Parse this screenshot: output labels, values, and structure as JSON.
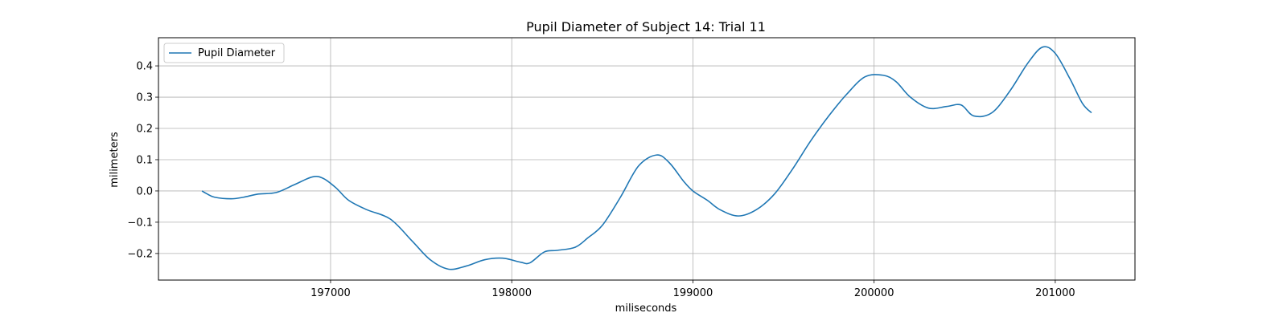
{
  "chart_data": {
    "type": "line",
    "title": "Pupil Diameter of Subject 14: Trial 11",
    "xlabel": "miliseconds",
    "ylabel": "milimeters",
    "xlim": [
      196050,
      201440
    ],
    "ylim": [
      -0.285,
      0.49
    ],
    "x_ticks": [
      197000,
      198000,
      199000,
      200000,
      201000
    ],
    "y_ticks": [
      -0.2,
      -0.1,
      0.0,
      0.1,
      0.2,
      0.3,
      0.4
    ],
    "x_tick_labels": [
      "197000",
      "198000",
      "199000",
      "200000",
      "201000"
    ],
    "y_tick_labels": [
      "−0.2",
      "−0.1",
      "0.0",
      "0.1",
      "0.2",
      "0.3",
      "0.4"
    ],
    "grid": true,
    "legend_position": "upper left",
    "series": [
      {
        "name": "Pupil Diameter",
        "color": "#1f77b4",
        "points": [
          [
            196290,
            0.0
          ],
          [
            196320,
            -0.01
          ],
          [
            196360,
            -0.02
          ],
          [
            196450,
            -0.025
          ],
          [
            196520,
            -0.02
          ],
          [
            196600,
            -0.01
          ],
          [
            196700,
            -0.005
          ],
          [
            196800,
            0.02
          ],
          [
            196900,
            0.045
          ],
          [
            196960,
            0.04
          ],
          [
            197030,
            0.01
          ],
          [
            197100,
            -0.03
          ],
          [
            197200,
            -0.06
          ],
          [
            197330,
            -0.09
          ],
          [
            197450,
            -0.16
          ],
          [
            197550,
            -0.22
          ],
          [
            197650,
            -0.25
          ],
          [
            197750,
            -0.24
          ],
          [
            197850,
            -0.22
          ],
          [
            197950,
            -0.215
          ],
          [
            198050,
            -0.228
          ],
          [
            198100,
            -0.23
          ],
          [
            198180,
            -0.195
          ],
          [
            198250,
            -0.19
          ],
          [
            198350,
            -0.18
          ],
          [
            198420,
            -0.15
          ],
          [
            198500,
            -0.11
          ],
          [
            198600,
            -0.02
          ],
          [
            198700,
            0.08
          ],
          [
            198800,
            0.115
          ],
          [
            198870,
            0.09
          ],
          [
            198950,
            0.03
          ],
          [
            199000,
            0.0
          ],
          [
            199080,
            -0.03
          ],
          [
            199150,
            -0.06
          ],
          [
            199250,
            -0.08
          ],
          [
            199350,
            -0.06
          ],
          [
            199450,
            -0.01
          ],
          [
            199550,
            0.07
          ],
          [
            199650,
            0.16
          ],
          [
            199750,
            0.24
          ],
          [
            199850,
            0.31
          ],
          [
            199950,
            0.365
          ],
          [
            200050,
            0.37
          ],
          [
            200120,
            0.35
          ],
          [
            200200,
            0.3
          ],
          [
            200300,
            0.265
          ],
          [
            200400,
            0.27
          ],
          [
            200480,
            0.275
          ],
          [
            200550,
            0.24
          ],
          [
            200650,
            0.25
          ],
          [
            200750,
            0.32
          ],
          [
            200850,
            0.41
          ],
          [
            200930,
            0.46
          ],
          [
            201000,
            0.44
          ],
          [
            201080,
            0.36
          ],
          [
            201150,
            0.28
          ],
          [
            201200,
            0.25
          ]
        ]
      }
    ]
  }
}
